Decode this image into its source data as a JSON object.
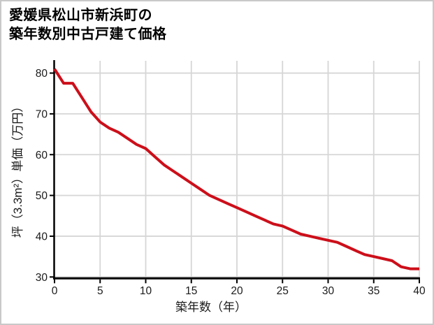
{
  "page": {
    "title_line1": "愛媛県松山市新浜町の",
    "title_line2": "築年数別中古戸建て価格"
  },
  "chart_data": {
    "type": "line",
    "title": "愛媛県松山市新浜町の築年数別中古戸建て価格",
    "xlabel": "築年数（年）",
    "ylabel": "坪（3.3m²）単価（万円）",
    "x": [
      0,
      1,
      2,
      3,
      4,
      5,
      6,
      7,
      8,
      9,
      10,
      11,
      12,
      13,
      14,
      15,
      16,
      17,
      18,
      19,
      20,
      21,
      22,
      23,
      24,
      25,
      26,
      27,
      28,
      29,
      30,
      31,
      32,
      33,
      34,
      35,
      36,
      37,
      38,
      39,
      40
    ],
    "values": [
      81,
      77.5,
      77.5,
      74,
      70.5,
      68,
      66.5,
      65.5,
      64,
      62.5,
      61.5,
      59.5,
      57.5,
      56,
      54.5,
      53,
      51.5,
      50,
      49,
      48,
      47,
      46,
      45,
      44,
      43,
      42.5,
      41.5,
      40.5,
      40,
      39.5,
      39,
      38.5,
      37.5,
      36.5,
      35.5,
      35,
      34.5,
      34,
      32.5,
      32,
      32
    ],
    "xlim": [
      0,
      40
    ],
    "ylim": [
      30,
      83
    ],
    "x_ticks": [
      0,
      5,
      10,
      15,
      20,
      25,
      30,
      35,
      40
    ],
    "y_ticks": [
      30,
      40,
      50,
      60,
      70,
      80
    ],
    "grid": true,
    "legend_position": "none",
    "line_color": "#cc0f1a",
    "grid_color": "#d6d6d6",
    "axis_color": "#000000",
    "tick_label_color": "#1a1a1a",
    "background": "#ffffff",
    "frame_border_color": "#c9c9c9"
  }
}
